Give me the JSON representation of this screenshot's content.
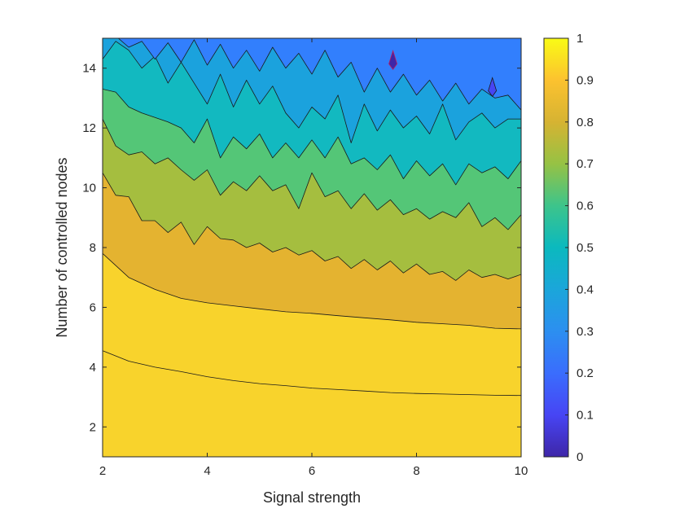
{
  "chart_data": {
    "type": "contourf",
    "xlabel": "Signal strength",
    "ylabel": "Number of controlled nodes",
    "xlim": [
      2,
      10
    ],
    "ylim": [
      1,
      15
    ],
    "xticks": [
      2,
      4,
      6,
      8,
      10
    ],
    "yticks": [
      2,
      4,
      6,
      8,
      10,
      12,
      14
    ],
    "levels": [
      0,
      0.1,
      0.2,
      0.3,
      0.4,
      0.5,
      0.6,
      0.7,
      0.8,
      0.9,
      1
    ],
    "colorbar": {
      "range": [
        0,
        1
      ],
      "ticks": [
        0,
        0.1,
        0.2,
        0.3,
        0.4,
        0.5,
        0.6,
        0.7,
        0.8,
        0.9,
        1
      ],
      "tick_labels": [
        "0",
        "0.1",
        "0.2",
        "0.3",
        "0.4",
        "0.5",
        "0.6",
        "0.7",
        "0.8",
        "0.9",
        "1"
      ],
      "colors": [
        "#3e26a8",
        "#4745f4",
        "#327ffd",
        "#1ba2dd",
        "#12b9c0",
        "#54c677",
        "#a5be3f",
        "#e4b330",
        "#f8d32c",
        "#f9fb15"
      ]
    },
    "contours": [
      {
        "level": 0.9,
        "x": [
          2,
          2.5,
          3,
          3.5,
          4,
          4.5,
          5,
          5.5,
          6,
          6.5,
          7,
          7.5,
          8,
          8.5,
          9,
          9.5,
          10
        ],
        "y": [
          4.55,
          4.2,
          4.0,
          3.85,
          3.68,
          3.55,
          3.45,
          3.38,
          3.3,
          3.25,
          3.2,
          3.15,
          3.12,
          3.1,
          3.08,
          3.06,
          3.05
        ]
      },
      {
        "level": 0.8,
        "x": [
          2,
          2.5,
          3,
          3.5,
          4,
          4.5,
          5,
          5.5,
          6,
          6.5,
          7,
          7.5,
          8,
          8.5,
          9,
          9.5,
          10
        ],
        "y": [
          7.8,
          7.0,
          6.6,
          6.3,
          6.15,
          6.05,
          5.95,
          5.85,
          5.8,
          5.72,
          5.65,
          5.58,
          5.5,
          5.45,
          5.4,
          5.3,
          5.28
        ]
      },
      {
        "level": 0.7,
        "x": [
          2,
          2.25,
          2.5,
          2.75,
          3,
          3.25,
          3.5,
          3.75,
          4,
          4.25,
          4.5,
          4.75,
          5,
          5.25,
          5.5,
          5.75,
          6,
          6.25,
          6.5,
          6.75,
          7,
          7.25,
          7.5,
          7.75,
          8,
          8.25,
          8.5,
          8.75,
          9,
          9.25,
          9.5,
          9.75,
          10
        ],
        "y": [
          10.5,
          9.75,
          9.7,
          8.9,
          8.9,
          8.5,
          8.85,
          8.1,
          8.7,
          8.3,
          8.25,
          8.0,
          8.15,
          7.85,
          8.0,
          7.75,
          7.9,
          7.55,
          7.7,
          7.3,
          7.6,
          7.25,
          7.55,
          7.15,
          7.45,
          7.1,
          7.2,
          6.9,
          7.25,
          7.0,
          7.1,
          6.95,
          7.1
        ]
      },
      {
        "level": 0.6,
        "x": [
          2,
          2.25,
          2.5,
          2.75,
          3,
          3.25,
          3.5,
          3.75,
          4,
          4.25,
          4.5,
          4.75,
          5,
          5.25,
          5.5,
          5.75,
          6,
          6.25,
          6.5,
          6.75,
          7,
          7.25,
          7.5,
          7.75,
          8,
          8.25,
          8.5,
          8.75,
          9,
          9.25,
          9.5,
          9.75,
          10
        ],
        "y": [
          12.3,
          11.4,
          11.1,
          11.2,
          10.8,
          11.0,
          10.6,
          10.25,
          10.6,
          9.75,
          10.2,
          9.9,
          10.4,
          9.9,
          10.1,
          9.3,
          10.5,
          9.7,
          9.9,
          9.3,
          9.8,
          9.25,
          9.6,
          9.1,
          9.3,
          8.95,
          9.2,
          9.0,
          9.5,
          8.7,
          9.0,
          8.6,
          9.1
        ]
      },
      {
        "level": 0.5,
        "x": [
          2,
          2.25,
          2.5,
          2.75,
          3,
          3.25,
          3.5,
          3.75,
          4,
          4.25,
          4.5,
          4.75,
          5,
          5.25,
          5.5,
          5.75,
          6,
          6.25,
          6.5,
          6.75,
          7,
          7.25,
          7.5,
          7.75,
          8,
          8.25,
          8.5,
          8.75,
          9,
          9.25,
          9.5,
          9.75,
          10
        ],
        "y": [
          13.3,
          13.2,
          12.7,
          12.5,
          12.35,
          12.2,
          12.0,
          11.5,
          12.3,
          11.0,
          11.7,
          11.3,
          11.8,
          11.0,
          11.5,
          11.0,
          11.6,
          11.0,
          11.7,
          10.8,
          11.0,
          10.6,
          11.1,
          10.3,
          10.9,
          10.4,
          10.8,
          10.1,
          10.8,
          10.5,
          10.7,
          10.3,
          10.9
        ]
      },
      {
        "level": 0.4,
        "x": [
          2,
          2.25,
          2.5,
          2.75,
          3,
          3.25,
          3.5,
          3.75,
          4,
          4.25,
          4.5,
          4.75,
          5,
          5.25,
          5.5,
          5.75,
          6,
          6.25,
          6.5,
          6.75,
          7,
          7.25,
          7.5,
          7.75,
          8,
          8.25,
          8.5,
          8.75,
          9,
          9.25,
          9.5,
          9.75,
          10
        ],
        "y": [
          14.3,
          14.9,
          14.6,
          14.0,
          14.4,
          13.5,
          14.2,
          13.5,
          12.8,
          13.8,
          12.7,
          13.6,
          12.8,
          13.4,
          12.5,
          12.0,
          12.7,
          12.3,
          13.1,
          11.5,
          12.8,
          11.9,
          12.6,
          12.0,
          12.4,
          11.8,
          12.8,
          11.6,
          12.2,
          12.5,
          12.0,
          12.3,
          12.3
        ]
      },
      {
        "level": 0.3,
        "x": [
          2.3,
          2.5,
          2.75,
          3,
          3.25,
          3.5,
          3.75,
          4,
          4.25,
          4.5,
          4.75,
          5,
          5.25,
          5.5,
          5.75,
          6,
          6.25,
          6.5,
          6.75,
          7,
          7.25,
          7.5,
          7.75,
          8,
          8.25,
          8.5,
          8.75,
          9,
          9.25,
          9.5,
          9.75,
          10
        ],
        "y": [
          15,
          14.7,
          14.9,
          14.3,
          14.85,
          14.2,
          14.95,
          14.1,
          14.8,
          14.0,
          14.6,
          13.9,
          14.7,
          14.0,
          14.5,
          13.8,
          14.6,
          13.7,
          14.2,
          13.2,
          14.0,
          13.2,
          13.8,
          13.1,
          13.6,
          12.9,
          13.5,
          12.8,
          13.3,
          13.0,
          13.1,
          12.6
        ]
      }
    ],
    "spots": [
      {
        "level": 0.1,
        "x": 9.45,
        "y": 13.3
      },
      {
        "level": 0.0,
        "x": 7.55,
        "y": 14.2
      }
    ]
  }
}
